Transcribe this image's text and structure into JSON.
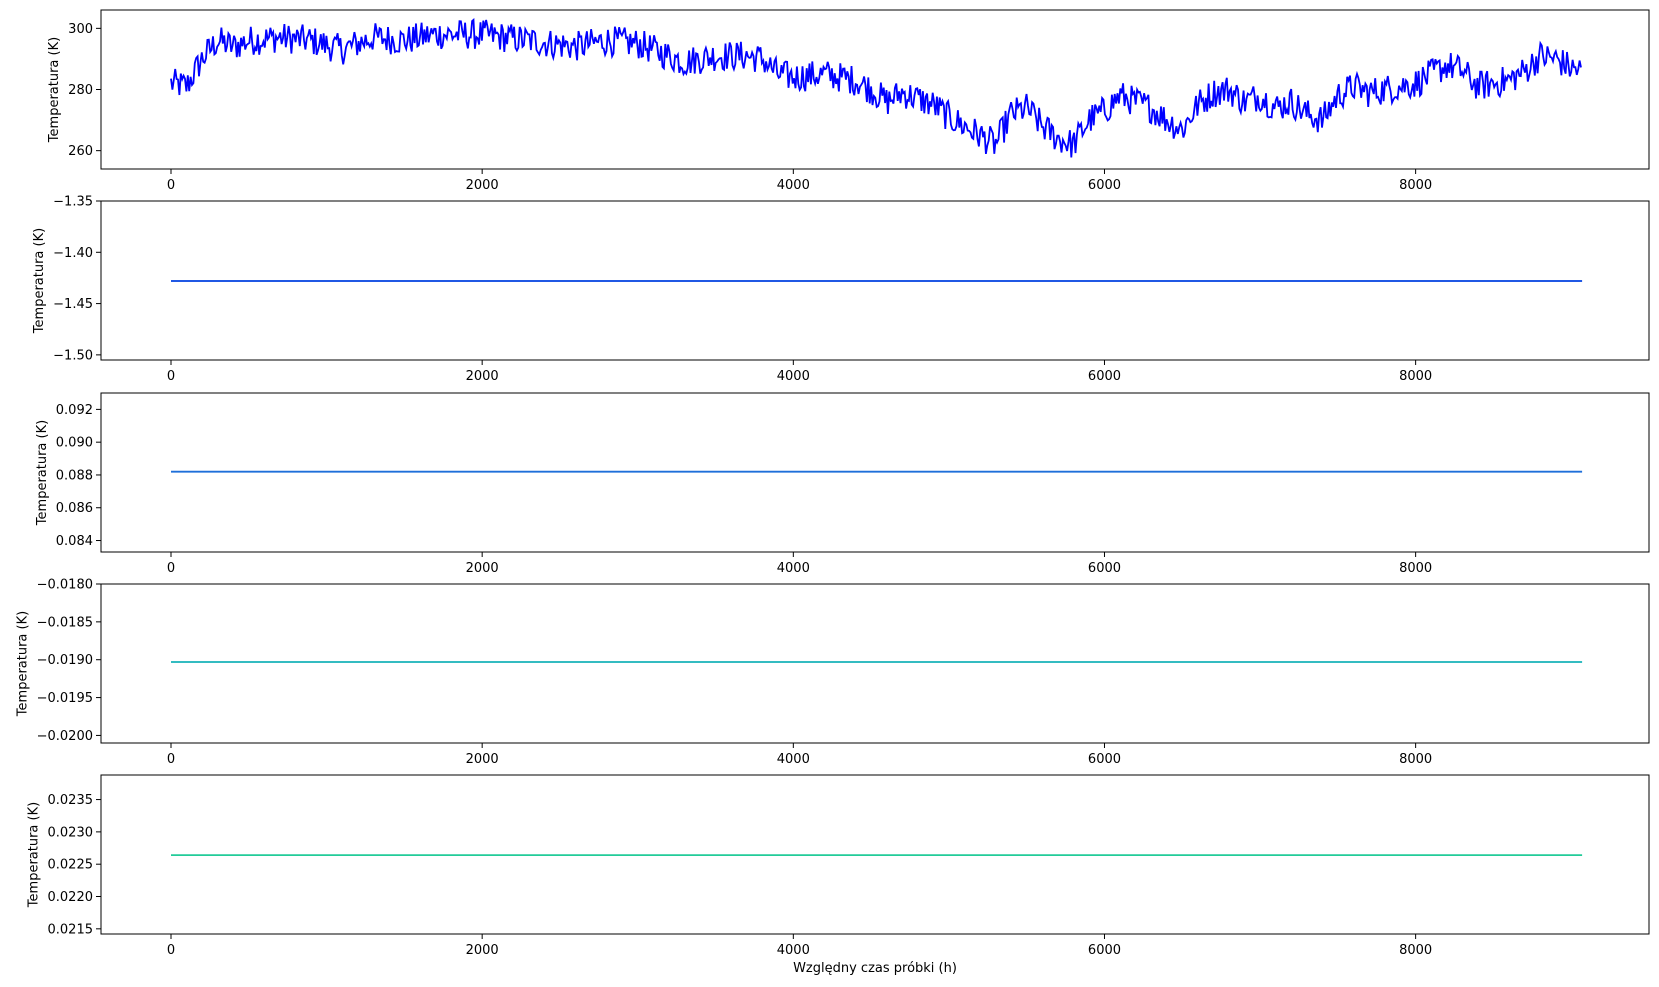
{
  "chart_data": [
    {
      "type": "line",
      "ylabel": "Temperatura (K)",
      "xlabel": "",
      "xlim": [
        -450,
        9500
      ],
      "ylim": [
        254,
        306
      ],
      "xticks": [
        0,
        2000,
        4000,
        6000,
        8000
      ],
      "xtick_labels": [
        "0",
        "2000",
        "4000",
        "6000",
        "8000"
      ],
      "yticks": [
        260,
        280,
        300
      ],
      "ytick_labels": [
        "260",
        "280",
        "300"
      ],
      "series": [
        {
          "color": "#0000ff",
          "noise": 5,
          "x_max": 9070,
          "points": [
            [
              0,
              282
            ],
            [
              100,
              281
            ],
            [
              200,
              290
            ],
            [
              300,
              296
            ],
            [
              400,
              294
            ],
            [
              500,
              296
            ],
            [
              700,
              297
            ],
            [
              900,
              296
            ],
            [
              1100,
              293
            ],
            [
              1300,
              297
            ],
            [
              1500,
              296
            ],
            [
              1700,
              298
            ],
            [
              2000,
              298
            ],
            [
              2300,
              296
            ],
            [
              2600,
              294
            ],
            [
              2800,
              296
            ],
            [
              3000,
              295
            ],
            [
              3300,
              289
            ],
            [
              3500,
              291
            ],
            [
              3700,
              291
            ],
            [
              3800,
              290
            ],
            [
              3900,
              285
            ],
            [
              4000,
              284
            ],
            [
              4200,
              285
            ],
            [
              4400,
              283
            ],
            [
              4500,
              280
            ],
            [
              4600,
              276
            ],
            [
              4700,
              279
            ],
            [
              4800,
              277
            ],
            [
              4900,
              275
            ],
            [
              5000,
              271
            ],
            [
              5100,
              268
            ],
            [
              5200,
              265
            ],
            [
              5300,
              262
            ],
            [
              5400,
              272
            ],
            [
              5500,
              274
            ],
            [
              5600,
              268
            ],
            [
              5700,
              264
            ],
            [
              5800,
              262
            ],
            [
              5900,
              270
            ],
            [
              6000,
              273
            ],
            [
              6100,
              278
            ],
            [
              6200,
              276
            ],
            [
              6300,
              274
            ],
            [
              6400,
              270
            ],
            [
              6500,
              267
            ],
            [
              6600,
              275
            ],
            [
              6700,
              279
            ],
            [
              6800,
              280
            ],
            [
              6900,
              276
            ],
            [
              7000,
              278
            ],
            [
              7100,
              274
            ],
            [
              7200,
              276
            ],
            [
              7300,
              272
            ],
            [
              7400,
              270
            ],
            [
              7500,
              278
            ],
            [
              7600,
              281
            ],
            [
              7700,
              279
            ],
            [
              7800,
              280
            ],
            [
              7900,
              281
            ],
            [
              8000,
              282
            ],
            [
              8100,
              285
            ],
            [
              8200,
              288
            ],
            [
              8300,
              286
            ],
            [
              8400,
              281
            ],
            [
              8500,
              282
            ],
            [
              8600,
              283
            ],
            [
              8700,
              286
            ],
            [
              8800,
              291
            ],
            [
              8900,
              290
            ],
            [
              9000,
              287
            ],
            [
              9070,
              286
            ]
          ]
        }
      ]
    },
    {
      "type": "line",
      "ylabel": "Temperatura (K)",
      "xlabel": "",
      "xlim": [
        -450,
        9500
      ],
      "ylim": [
        -1.505,
        -1.35
      ],
      "xticks": [
        0,
        2000,
        4000,
        6000,
        8000
      ],
      "xtick_labels": [
        "0",
        "2000",
        "4000",
        "6000",
        "8000"
      ],
      "yticks": [
        -1.5,
        -1.45,
        -1.4,
        -1.35
      ],
      "ytick_labels": [
        "−1.50",
        "−1.45",
        "−1.40",
        "−1.35"
      ],
      "series": [
        {
          "color": "#0040e0",
          "x": [
            0,
            9070
          ],
          "y": [
            -1.428,
            -1.428
          ]
        }
      ]
    },
    {
      "type": "line",
      "ylabel": "Temperatura (K)",
      "xlabel": "",
      "xlim": [
        -450,
        9500
      ],
      "ylim": [
        0.0833,
        0.093
      ],
      "xticks": [
        0,
        2000,
        4000,
        6000,
        8000
      ],
      "xtick_labels": [
        "0",
        "2000",
        "4000",
        "6000",
        "8000"
      ],
      "yticks": [
        0.084,
        0.086,
        0.088,
        0.09,
        0.092
      ],
      "ytick_labels": [
        "0.084",
        "0.086",
        "0.088",
        "0.090",
        "0.092"
      ],
      "series": [
        {
          "color": "#1e6fd9",
          "x": [
            0,
            9070
          ],
          "y": [
            0.0882,
            0.0882
          ]
        }
      ]
    },
    {
      "type": "line",
      "ylabel": "Temperatura (K)",
      "xlabel": "",
      "xlim": [
        -450,
        9500
      ],
      "ylim": [
        -0.0201,
        -0.018
      ],
      "xticks": [
        0,
        2000,
        4000,
        6000,
        8000
      ],
      "xtick_labels": [
        "0",
        "2000",
        "4000",
        "6000",
        "8000"
      ],
      "yticks": [
        -0.02,
        -0.0195,
        -0.019,
        -0.0185,
        -0.018
      ],
      "ytick_labels": [
        "−0.0200",
        "−0.0195",
        "−0.0190",
        "−0.0185",
        "−0.0180"
      ],
      "series": [
        {
          "color": "#17b3b8",
          "x": [
            0,
            9070
          ],
          "y": [
            -0.01903,
            -0.01903
          ]
        }
      ]
    },
    {
      "type": "line",
      "ylabel": "Temperatura (K)",
      "xlabel": "Względny czas próbki (h)",
      "xlim": [
        -450,
        9500
      ],
      "ylim": [
        0.02142,
        0.02388
      ],
      "xticks": [
        0,
        2000,
        4000,
        6000,
        8000
      ],
      "xtick_labels": [
        "0",
        "2000",
        "4000",
        "6000",
        "8000"
      ],
      "yticks": [
        0.0215,
        0.022,
        0.0225,
        0.023,
        0.0235
      ],
      "ytick_labels": [
        "0.0215",
        "0.0220",
        "0.0225",
        "0.0230",
        "0.0235"
      ],
      "series": [
        {
          "color": "#22cc99",
          "x": [
            0,
            9070
          ],
          "y": [
            0.02264,
            0.02264
          ]
        }
      ]
    }
  ]
}
